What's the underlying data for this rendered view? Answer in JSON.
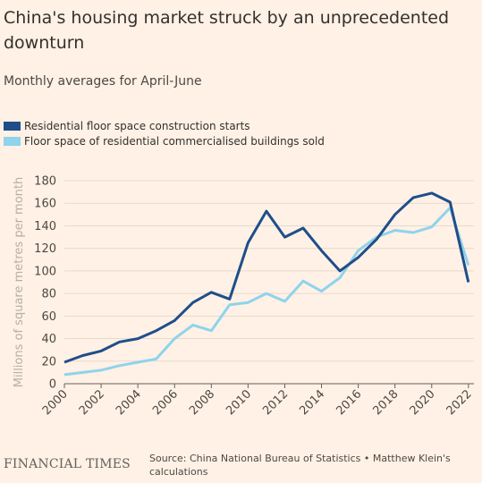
{
  "title": "China's housing market struck by an unprecedented downturn",
  "subtitle": "Monthly averages for April-June",
  "source": "Source: China National Bureau of Statistics • Matthew Klein's calculations",
  "publisher": "FINANCIAL TIMES",
  "colors": {
    "background": "#fff1e5",
    "grid": "#e6d9ce",
    "text": "#33302e",
    "muted": "#66605c"
  },
  "chart_data": {
    "type": "line",
    "title": "China's housing market struck by an unprecedented downturn",
    "subtitle": "Monthly averages for April-June",
    "xlabel": "",
    "ylabel": "Millions of square metres per month",
    "xlim": [
      2000,
      2022.3
    ],
    "ylim": [
      0,
      180
    ],
    "yticks": [
      0,
      20,
      40,
      60,
      80,
      100,
      120,
      140,
      160,
      180
    ],
    "xticks": [
      2000,
      2002,
      2004,
      2006,
      2008,
      2010,
      2012,
      2014,
      2016,
      2018,
      2020,
      2022
    ],
    "grid": true,
    "legend_position": "top-left",
    "x": [
      2000,
      2001,
      2002,
      2003,
      2004,
      2005,
      2006,
      2007,
      2008,
      2009,
      2010,
      2011,
      2012,
      2013,
      2014,
      2015,
      2016,
      2017,
      2018,
      2019,
      2020,
      2021,
      2022
    ],
    "series": [
      {
        "name": "Residential floor space construction starts",
        "color": "#1f4e8a",
        "values": [
          19,
          25,
          29,
          37,
          40,
          47,
          56,
          72,
          81,
          75,
          125,
          153,
          130,
          138,
          118,
          100,
          112,
          128,
          150,
          165,
          169,
          161,
          90
        ]
      },
      {
        "name": "Floor space of residential commercialised buildings sold",
        "color": "#8fd3ec",
        "values": [
          8,
          10,
          12,
          16,
          19,
          22,
          40,
          52,
          47,
          70,
          72,
          80,
          73,
          91,
          82,
          94,
          118,
          130,
          136,
          134,
          139,
          156,
          105
        ]
      }
    ]
  }
}
